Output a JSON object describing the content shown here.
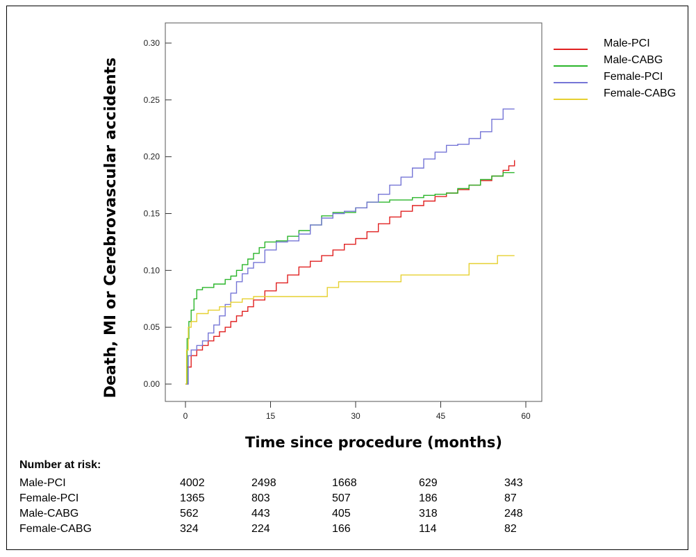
{
  "chart_data": {
    "type": "line",
    "step": true,
    "title": "",
    "xlabel": "Time since procedure (months)",
    "ylabel": "Death, MI or Cerebrovascular accidents",
    "xlim": [
      0,
      60
    ],
    "ylim": [
      0,
      0.3
    ],
    "xticks": [
      0,
      15,
      30,
      45,
      60
    ],
    "xtick_labels": [
      "0",
      "15",
      "30",
      "45",
      "60"
    ],
    "yticks": [
      0,
      0.05,
      0.1,
      0.15,
      0.2,
      0.25,
      0.3
    ],
    "ytick_labels": [
      "0.00",
      "0.05",
      "0.10",
      "0.15",
      "0.20",
      "0.25",
      "0.30"
    ],
    "grid": false,
    "legend_position": "right",
    "series": [
      {
        "name": "Male-PCI",
        "color": "#e02020",
        "x": [
          0,
          0.3,
          1,
          2,
          3,
          4,
          5,
          6,
          7,
          8,
          9,
          10,
          11,
          12,
          14,
          16,
          18,
          20,
          22,
          24,
          26,
          28,
          30,
          32,
          34,
          36,
          38,
          40,
          42,
          44,
          46,
          48,
          50,
          52,
          54,
          56,
          57,
          58
        ],
        "y": [
          0,
          0.015,
          0.025,
          0.03,
          0.034,
          0.038,
          0.042,
          0.046,
          0.05,
          0.055,
          0.06,
          0.064,
          0.068,
          0.074,
          0.082,
          0.089,
          0.096,
          0.103,
          0.108,
          0.113,
          0.118,
          0.123,
          0.128,
          0.134,
          0.141,
          0.147,
          0.152,
          0.157,
          0.161,
          0.165,
          0.168,
          0.171,
          0.175,
          0.179,
          0.183,
          0.188,
          0.192,
          0.197
        ]
      },
      {
        "name": "Male-CABG",
        "color": "#2ab52a",
        "x": [
          0,
          0.3,
          0.6,
          1,
          1.5,
          2,
          3,
          5,
          7,
          8,
          9,
          10,
          11,
          12,
          13,
          14,
          16,
          18,
          20,
          22,
          24,
          26,
          28,
          30,
          32,
          34,
          36,
          38,
          40,
          42,
          44,
          46,
          48,
          50,
          52,
          54,
          56,
          58
        ],
        "y": [
          0,
          0.04,
          0.055,
          0.065,
          0.075,
          0.083,
          0.085,
          0.088,
          0.092,
          0.095,
          0.1,
          0.105,
          0.11,
          0.115,
          0.12,
          0.125,
          0.126,
          0.13,
          0.135,
          0.14,
          0.148,
          0.151,
          0.151,
          0.155,
          0.16,
          0.16,
          0.162,
          0.162,
          0.164,
          0.166,
          0.167,
          0.168,
          0.172,
          0.175,
          0.18,
          0.183,
          0.186,
          0.186
        ]
      },
      {
        "name": "Female-PCI",
        "color": "#7575d6",
        "x": [
          0,
          0.5,
          1,
          2,
          3,
          4,
          5,
          6,
          7,
          8,
          9,
          10,
          11,
          12,
          14,
          16,
          18,
          20,
          22,
          24,
          26,
          28,
          30,
          32,
          34,
          36,
          38,
          40,
          42,
          44,
          46,
          48,
          50,
          52,
          54,
          56,
          58
        ],
        "y": [
          0,
          0.025,
          0.03,
          0.034,
          0.038,
          0.045,
          0.052,
          0.06,
          0.07,
          0.08,
          0.09,
          0.097,
          0.102,
          0.107,
          0.118,
          0.125,
          0.126,
          0.132,
          0.14,
          0.146,
          0.15,
          0.152,
          0.155,
          0.16,
          0.167,
          0.175,
          0.182,
          0.19,
          0.198,
          0.204,
          0.21,
          0.211,
          0.216,
          0.222,
          0.233,
          0.242,
          0.242
        ]
      },
      {
        "name": "Female-CABG",
        "color": "#e6d030",
        "x": [
          0,
          0.2,
          0.5,
          1,
          2,
          4,
          6,
          8,
          10,
          12,
          14,
          16,
          18,
          20,
          22,
          24,
          25,
          27,
          30,
          34,
          38,
          40,
          45,
          50,
          55,
          58
        ],
        "y": [
          0,
          0.03,
          0.05,
          0.055,
          0.062,
          0.065,
          0.068,
          0.072,
          0.075,
          0.077,
          0.077,
          0.077,
          0.077,
          0.077,
          0.077,
          0.077,
          0.085,
          0.09,
          0.09,
          0.09,
          0.096,
          0.096,
          0.096,
          0.106,
          0.113,
          0.113
        ]
      }
    ]
  },
  "risk_table": {
    "title": "Number at risk:",
    "rows": [
      {
        "label": "Male-PCI",
        "values": [
          "4002",
          "2498",
          "1668",
          "629",
          "343"
        ]
      },
      {
        "label": "Female-PCI",
        "values": [
          "1365",
          "803",
          "507",
          "186",
          "87"
        ]
      },
      {
        "label": "Male-CABG",
        "values": [
          "562",
          "443",
          "405",
          "318",
          "248"
        ]
      },
      {
        "label": "Female-CABG",
        "values": [
          "324",
          "224",
          "166",
          "114",
          "82"
        ]
      }
    ]
  }
}
